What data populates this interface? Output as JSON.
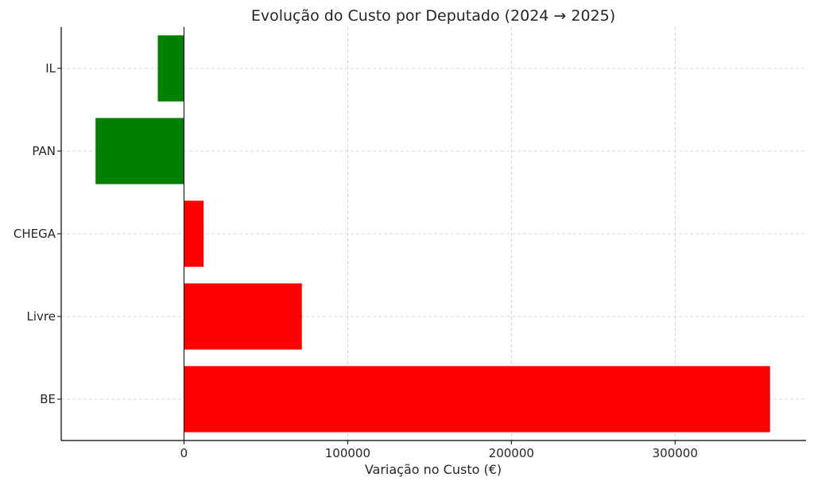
{
  "chart_data": {
    "type": "bar",
    "orientation": "horizontal",
    "title": "Evolução do Custo por Deputado (2024 → 2025)",
    "xlabel": "Variação no Custo (€)",
    "ylabel": "",
    "categories": [
      "BE",
      "Livre",
      "CHEGA",
      "PAN",
      "IL"
    ],
    "values": [
      358000,
      72000,
      12000,
      -54000,
      -16000
    ],
    "xlim": [
      -75000,
      380000
    ],
    "xticks": [
      0,
      100000,
      200000,
      300000
    ],
    "xtick_labels": [
      "0",
      "100000",
      "200000",
      "300000"
    ],
    "grid": true,
    "colors": {
      "increase": "#ff0000",
      "decrease": "#008000"
    }
  }
}
